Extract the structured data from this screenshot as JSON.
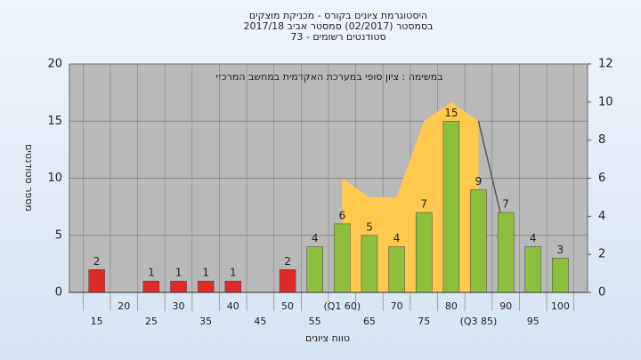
{
  "chart_data": {
    "type": "bar",
    "title": [
      "היסטוגרמת ציונים בקורס - מכניקת מוצקים",
      "בסמסטר  (02/2017)  סמסטר אביב 2017/18",
      "סטודנטים רשומים - 73"
    ],
    "annotation": "במשימה : ציון סופי במערכת האקדמית במחשב המרכזי",
    "x_label": "טווח ציונים",
    "y_label": "מספר סטודנטים",
    "categories": [
      "15",
      "20",
      "25",
      "30",
      "35",
      "40",
      "45",
      "50",
      "55",
      "(Q1 60)",
      "65",
      "70",
      "75",
      "80",
      "(Q3 85)",
      "90",
      "95",
      "100"
    ],
    "series": [
      {
        "color": "#e02a2a",
        "values": [
          2,
          null,
          1,
          1,
          1,
          1,
          null,
          2,
          null,
          null,
          null,
          null,
          null,
          null,
          null,
          null,
          null,
          null
        ]
      },
      {
        "color": "#8cc03c",
        "values": [
          null,
          null,
          null,
          null,
          null,
          null,
          null,
          null,
          4,
          6,
          5,
          4,
          7,
          15,
          9,
          7,
          4,
          3
        ]
      }
    ],
    "area": {
      "axis": "y2",
      "color": "#ffc94d",
      "values": [
        null,
        null,
        null,
        null,
        null,
        null,
        null,
        null,
        null,
        6,
        5,
        5,
        9,
        10,
        9,
        null,
        null,
        null
      ]
    },
    "line": {
      "axis": "y2",
      "color": "#555555",
      "values": [
        null,
        null,
        null,
        null,
        null,
        null,
        null,
        null,
        null,
        null,
        null,
        null,
        null,
        null,
        9,
        3,
        null,
        null
      ]
    },
    "ylim": [
      0,
      20
    ],
    "yticks": [
      0,
      5,
      10,
      15,
      20
    ],
    "y2lim": [
      0,
      12
    ],
    "y2ticks": [
      0,
      2,
      4,
      6,
      8,
      10,
      12
    ],
    "grid": true
  }
}
